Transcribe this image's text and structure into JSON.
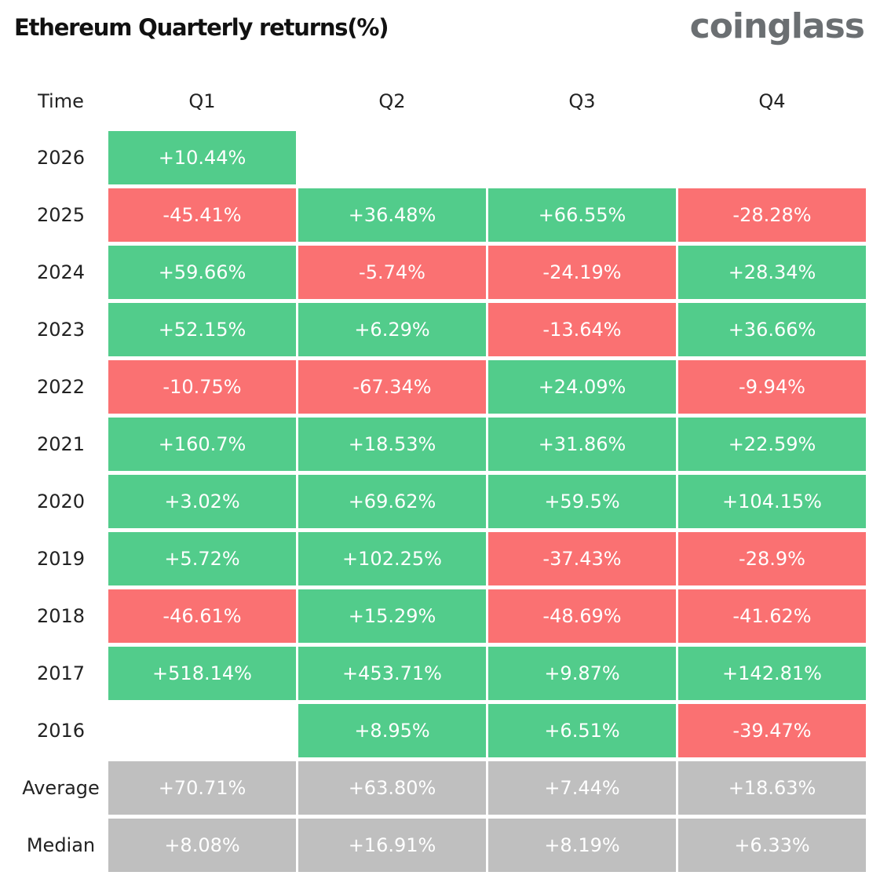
{
  "title": "Ethereum Quarterly returns(%)",
  "logo": "coinglass",
  "colors": {
    "positive": "#52cc8b",
    "negative": "#fa7172",
    "summary": "#bfbfbf"
  },
  "chart_data": {
    "type": "table",
    "title": "Ethereum Quarterly returns(%)",
    "header": [
      "Time",
      "Q1",
      "Q2",
      "Q3",
      "Q4"
    ],
    "rows": [
      {
        "label": "2026",
        "values": [
          "+10.44%",
          null,
          null,
          null
        ]
      },
      {
        "label": "2025",
        "values": [
          "-45.41%",
          "+36.48%",
          "+66.55%",
          "-28.28%"
        ]
      },
      {
        "label": "2024",
        "values": [
          "+59.66%",
          "-5.74%",
          "-24.19%",
          "+28.34%"
        ]
      },
      {
        "label": "2023",
        "values": [
          "+52.15%",
          "+6.29%",
          "-13.64%",
          "+36.66%"
        ]
      },
      {
        "label": "2022",
        "values": [
          "-10.75%",
          "-67.34%",
          "+24.09%",
          "-9.94%"
        ]
      },
      {
        "label": "2021",
        "values": [
          "+160.7%",
          "+18.53%",
          "+31.86%",
          "+22.59%"
        ]
      },
      {
        "label": "2020",
        "values": [
          "+3.02%",
          "+69.62%",
          "+59.5%",
          "+104.15%"
        ]
      },
      {
        "label": "2019",
        "values": [
          "+5.72%",
          "+102.25%",
          "-37.43%",
          "-28.9%"
        ]
      },
      {
        "label": "2018",
        "values": [
          "-46.61%",
          "+15.29%",
          "-48.69%",
          "-41.62%"
        ]
      },
      {
        "label": "2017",
        "values": [
          "+518.14%",
          "+453.71%",
          "+9.87%",
          "+142.81%"
        ]
      },
      {
        "label": "2016",
        "values": [
          null,
          "+8.95%",
          "+6.51%",
          "-39.47%"
        ]
      }
    ],
    "summary": [
      {
        "label": "Average",
        "values": [
          "+70.71%",
          "+63.80%",
          "+7.44%",
          "+18.63%"
        ]
      },
      {
        "label": "Median",
        "values": [
          "+8.08%",
          "+16.91%",
          "+8.19%",
          "+6.33%"
        ]
      }
    ]
  }
}
